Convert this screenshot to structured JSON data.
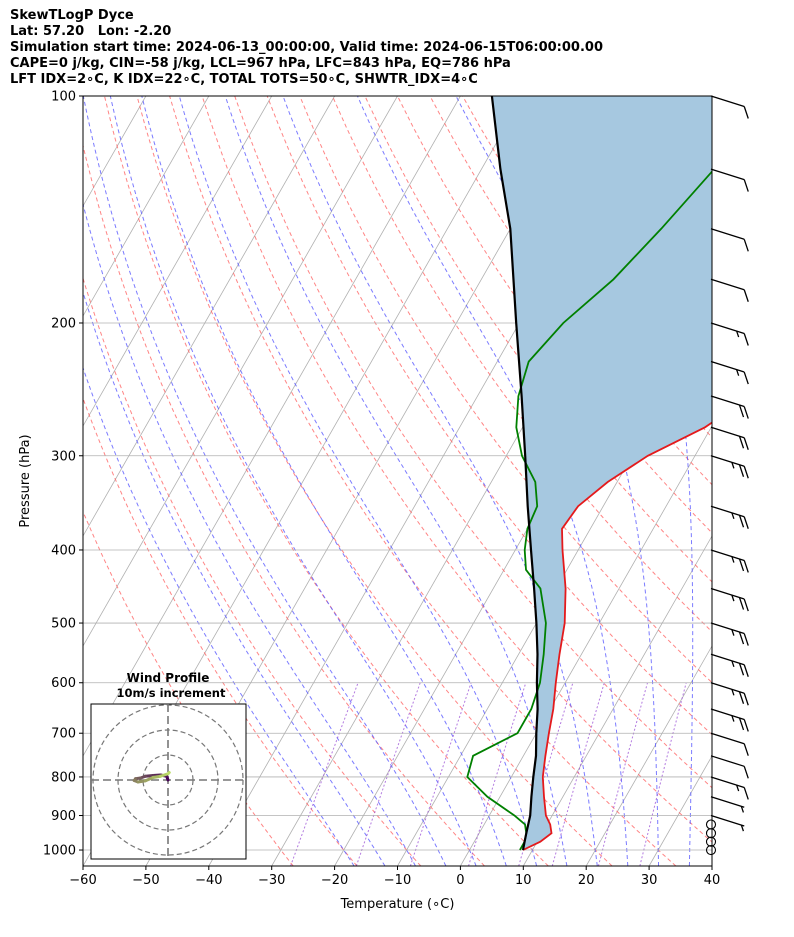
{
  "header": {
    "line1": "SkewTLogP Dyce",
    "line2": "Lat: 57.20   Lon: -2.20",
    "line3": "Simulation start time: 2024-06-13_00:00:00, Valid time: 2024-06-15T06:00:00.00",
    "line4": "CAPE=0 j/kg, CIN=-58 j/kg, LCL=967 hPa, LFC=843 hPa, EQ=786 hPa",
    "line5": "LFT IDX=2∘C, K IDX=22∘C, TOTAL TOTS=50∘C, SHWTR_IDX=4∘C"
  },
  "chart_data": {
    "type": "line",
    "skew_t_log_p": true,
    "xlabel": "Temperature (∘C)",
    "ylabel": "Pressure (hPa)",
    "xlim": [
      -60,
      40
    ],
    "ylim": [
      1050,
      100
    ],
    "y_scale": "log",
    "x_ticks": [
      "−60",
      "−50",
      "−40",
      "−30",
      "−20",
      "−10",
      "0",
      "10",
      "20",
      "30",
      "40"
    ],
    "y_ticks": [
      100,
      200,
      300,
      400,
      500,
      600,
      700,
      800,
      900,
      1000
    ],
    "grid": true,
    "colors": {
      "temperature": "#e41a1c",
      "dewpoint": "#008000",
      "parcel": "#000000",
      "cape_fill": "#a6c8e0",
      "dry_adiabat": "#ff6666",
      "moist_adiabat": "#5a5aff",
      "mixing_ratio": "#9a4fd6",
      "isotherm": "#b0b0b0"
    },
    "series": [
      {
        "role": "temperature",
        "points": [
          [
            8.5,
            1000
          ],
          [
            10.5,
            975
          ],
          [
            11.5,
            950
          ],
          [
            10.5,
            925
          ],
          [
            9,
            900
          ],
          [
            7,
            850
          ],
          [
            5,
            800
          ],
          [
            3.5,
            750
          ],
          [
            2,
            700
          ],
          [
            0.5,
            650
          ],
          [
            -1.5,
            600
          ],
          [
            -3.5,
            550
          ],
          [
            -5.5,
            500
          ],
          [
            -8.5,
            450
          ],
          [
            -12.5,
            400
          ],
          [
            -14.5,
            375
          ],
          [
            -14,
            350
          ],
          [
            -11.5,
            325
          ],
          [
            -7.5,
            300
          ],
          [
            -1,
            275
          ],
          [
            3.5,
            250
          ],
          [
            9,
            225
          ],
          [
            12,
            200
          ],
          [
            14.5,
            175
          ],
          [
            16,
            150
          ],
          [
            18,
            125
          ],
          [
            20,
            100
          ]
        ]
      },
      {
        "role": "dewpoint",
        "points": [
          [
            8,
            1000
          ],
          [
            8,
            975
          ],
          [
            7.5,
            950
          ],
          [
            6.5,
            925
          ],
          [
            4,
            900
          ],
          [
            -2,
            850
          ],
          [
            -7,
            800
          ],
          [
            -8,
            750
          ],
          [
            -3,
            700
          ],
          [
            -3,
            650
          ],
          [
            -4,
            600
          ],
          [
            -6,
            550
          ],
          [
            -8.5,
            500
          ],
          [
            -12.5,
            450
          ],
          [
            -16.5,
            425
          ],
          [
            -18.5,
            400
          ],
          [
            -20,
            375
          ],
          [
            -20.5,
            350
          ],
          [
            -23,
            325
          ],
          [
            -27.5,
            300
          ],
          [
            -31,
            275
          ],
          [
            -33.5,
            250
          ],
          [
            -35,
            225
          ],
          [
            -33,
            200
          ],
          [
            -29,
            175
          ],
          [
            -26,
            150
          ],
          [
            -23,
            125
          ],
          [
            -20,
            100
          ]
        ]
      },
      {
        "role": "parcel",
        "points": [
          [
            8.5,
            1000
          ],
          [
            8,
            975
          ],
          [
            7.5,
            950
          ],
          [
            6.5,
            900
          ],
          [
            5,
            850
          ],
          [
            3.5,
            800
          ],
          [
            2,
            750
          ],
          [
            0,
            700
          ],
          [
            -2,
            650
          ],
          [
            -4.5,
            600
          ],
          [
            -7,
            550
          ],
          [
            -10,
            500
          ],
          [
            -13.5,
            450
          ],
          [
            -17.5,
            400
          ],
          [
            -22,
            350
          ],
          [
            -27,
            300
          ],
          [
            -33,
            250
          ],
          [
            -40.5,
            200
          ],
          [
            -50,
            150
          ],
          [
            -57,
            125
          ],
          [
            -65,
            100
          ]
        ]
      }
    ],
    "barbs": [
      {
        "p": 1000,
        "speed_kt": 0
      },
      {
        "p": 975,
        "speed_kt": 0
      },
      {
        "p": 950,
        "speed_kt": 0
      },
      {
        "p": 925,
        "speed_kt": 0
      },
      {
        "p": 900,
        "speed_kt": 5
      },
      {
        "p": 850,
        "speed_kt": 5
      },
      {
        "p": 800,
        "speed_kt": 15
      },
      {
        "p": 750,
        "speed_kt": 10
      },
      {
        "p": 700,
        "speed_kt": 10
      },
      {
        "p": 650,
        "speed_kt": 25
      },
      {
        "p": 600,
        "speed_kt": 25
      },
      {
        "p": 550,
        "speed_kt": 25
      },
      {
        "p": 500,
        "speed_kt": 25
      },
      {
        "p": 450,
        "speed_kt": 25
      },
      {
        "p": 400,
        "speed_kt": 25
      },
      {
        "p": 350,
        "speed_kt": 25
      },
      {
        "p": 300,
        "speed_kt": 25
      },
      {
        "p": 275,
        "speed_kt": 20
      },
      {
        "p": 250,
        "speed_kt": 20
      },
      {
        "p": 225,
        "speed_kt": 15
      },
      {
        "p": 200,
        "speed_kt": 15
      },
      {
        "p": 175,
        "speed_kt": 10
      },
      {
        "p": 150,
        "speed_kt": 10
      },
      {
        "p": 125,
        "speed_kt": 10
      },
      {
        "p": 100,
        "speed_kt": 10
      }
    ],
    "hodograph": {
      "title": "Wind Profile",
      "subtitle": "10m/s increment",
      "rings": 3,
      "points": [
        [
          0,
          0
        ],
        [
          -0.5,
          1.5
        ],
        [
          -3,
          2
        ],
        [
          -6,
          1.8
        ],
        [
          -9,
          1.5
        ],
        [
          -11,
          0.8
        ],
        [
          -13,
          0.5
        ],
        [
          -13.5,
          -0.2
        ],
        [
          -12,
          -0.8
        ],
        [
          -9,
          -0.3
        ],
        [
          -6,
          1
        ],
        [
          -3,
          1.5
        ],
        [
          0,
          2.5
        ],
        [
          0.5,
          3
        ]
      ]
    }
  }
}
